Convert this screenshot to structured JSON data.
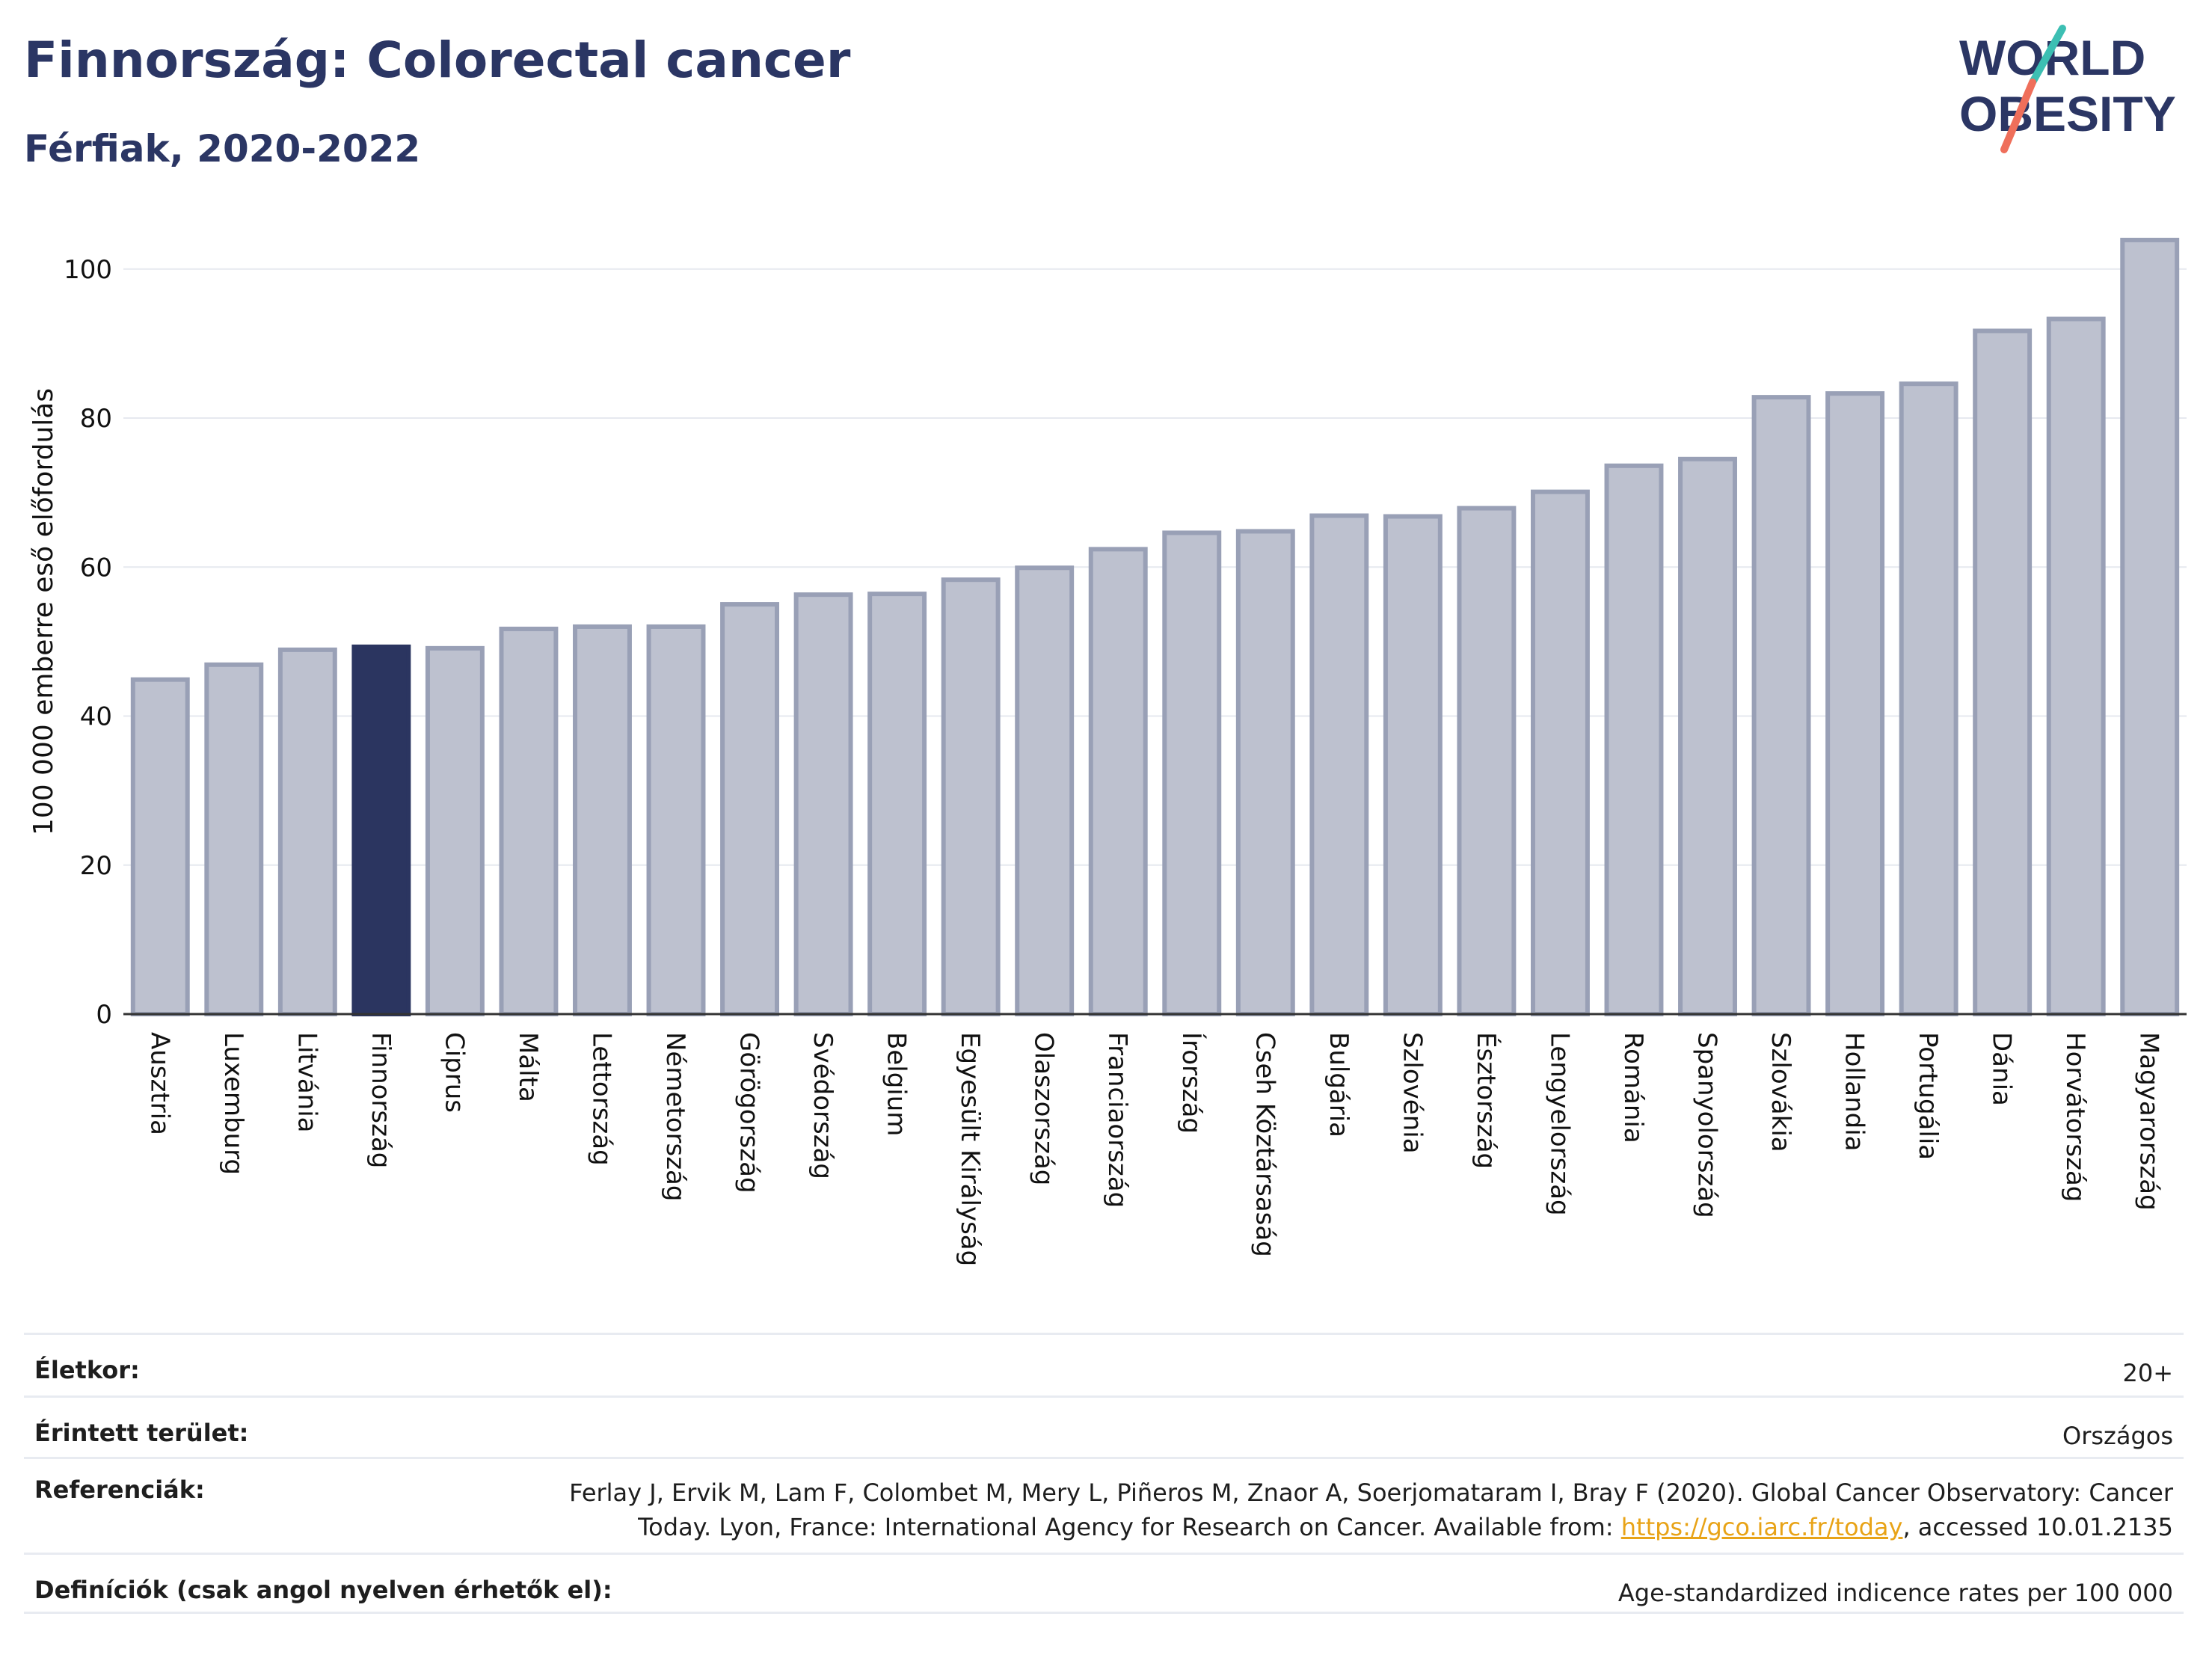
{
  "header": {
    "title": "Finnország: Colorectal cancer",
    "subtitle": "Férfiak, 2020-2022"
  },
  "logo": {
    "line1": "WORLD",
    "line2": "OBESITY"
  },
  "colors": {
    "highlight_bar": "#2b3560",
    "bar_fill": "#bdc1cf",
    "bar_stroke": "#99a0b6",
    "gridline": "#e6e9ef",
    "axis": "#333333",
    "logo_text": "#2b3664",
    "logo_teal": "#3cbfb3",
    "logo_coral": "#ef6f5b"
  },
  "chart_data": {
    "type": "bar",
    "ylabel": "100 000 emberre eső előfordulás",
    "xlabel": "",
    "ylim": [
      0,
      106
    ],
    "yticks": [
      0,
      20,
      40,
      60,
      80,
      100
    ],
    "grid": true,
    "highlight": "Finnország",
    "categories": [
      "Ausztria",
      "Luxemburg",
      "Litvánia",
      "Finnország",
      "Ciprus",
      "Málta",
      "Lettország",
      "Németország",
      "Görögország",
      "Svédország",
      "Belgium",
      "Egyesült Királyság",
      "Olaszország",
      "Franciaország",
      "Írország",
      "Cseh Köztársaság",
      "Bulgária",
      "Szlovénia",
      "Észtország",
      "Lengyelország",
      "Románia",
      "Spanyolország",
      "Szlovákia",
      "Hollandia",
      "Portugália",
      "Dánia",
      "Horvátország",
      "Magyarország"
    ],
    "values": [
      44.9,
      46.9,
      48.9,
      49.3,
      49.1,
      51.7,
      52.0,
      52.0,
      55.0,
      56.3,
      56.4,
      58.3,
      59.9,
      62.4,
      64.6,
      64.8,
      66.9,
      66.8,
      67.9,
      70.1,
      73.6,
      74.5,
      82.8,
      83.3,
      84.6,
      91.7,
      93.3,
      103.9
    ]
  },
  "meta": {
    "rows": [
      {
        "label": "Életkor:",
        "value": "20+"
      },
      {
        "label": "Érintett terület:",
        "value": "Országos"
      },
      {
        "label": "Referenciák:",
        "value_line1": "Ferlay J, Ervik M, Lam F, Colombet M, Mery L, Piñeros M, Znaor A, Soerjomataram I, Bray F (2020). Global Cancer Observatory: Cancer",
        "value_line2_pre": "Today. Lyon, France: International Agency for Research on Cancer. Available from: ",
        "link_text": "https://gco.iarc.fr/today",
        "value_line2_post": ", accessed 10.01.2135"
      },
      {
        "label": "Definíciók (csak angol nyelven érhetők el):",
        "value": "Age-standardized indicence rates per 100 000"
      }
    ]
  }
}
